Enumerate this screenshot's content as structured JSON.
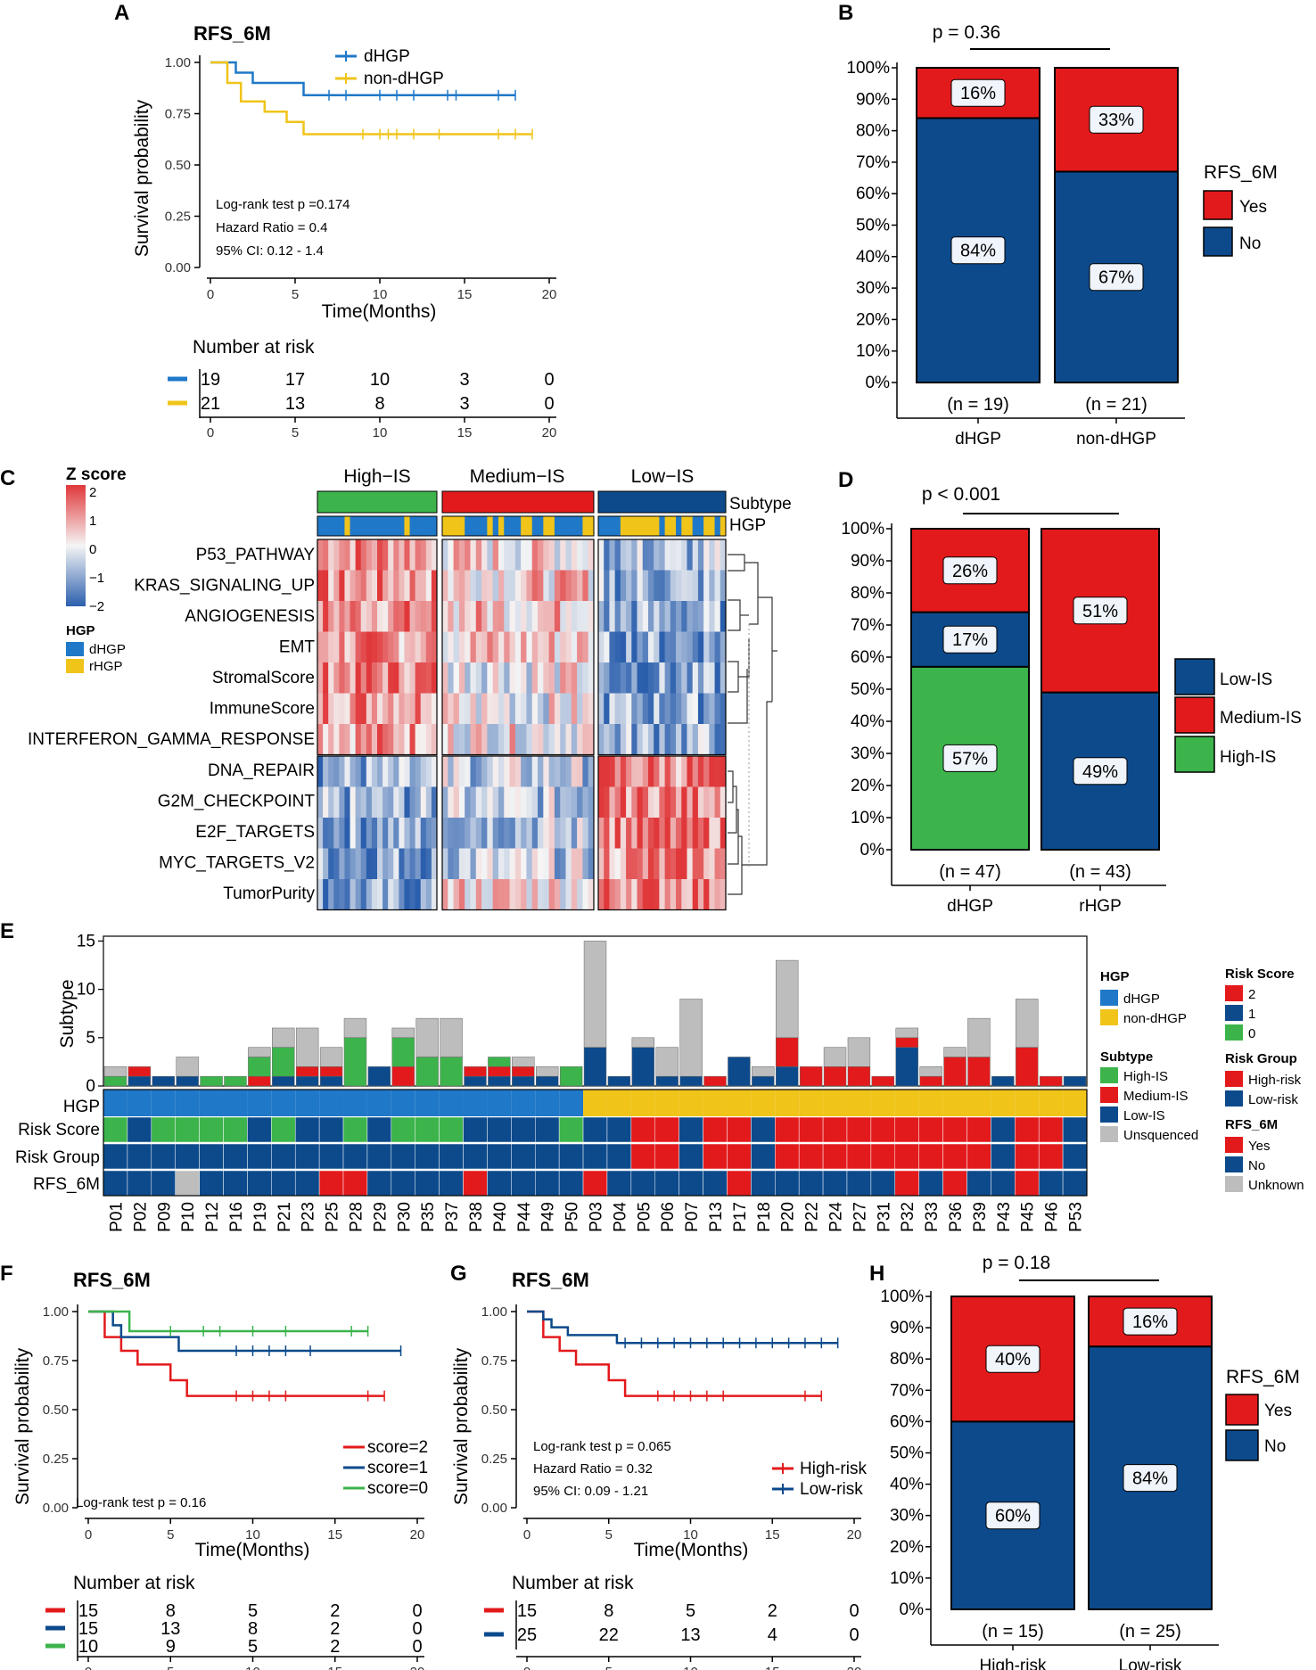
{
  "panels": {
    "a": "A",
    "b": "B",
    "c": "C",
    "d": "D",
    "e": "E",
    "f": "F",
    "g": "G",
    "h": "H"
  },
  "colors": {
    "blue": "#1f78c8",
    "yellow": "#f0c419",
    "red": "#e31a1c",
    "navy": "#0c4a8c",
    "green": "#3cb44b",
    "grey": "#bdbdbd"
  },
  "km_a": {
    "title": "RFS_6M",
    "ylabel": "Survival probability",
    "xlabel": "Time(Months)",
    "yticks": [
      "1.00",
      "0.75",
      "0.50",
      "0.25",
      "0.00"
    ],
    "xticks": [
      "0",
      "5",
      "10",
      "15",
      "20"
    ],
    "legend": [
      "dHGP",
      "non-dHGP"
    ],
    "stats": [
      "Log-rank test p =0.174",
      "Hazard Ratio = 0.4",
      "95% CI: 0.12 - 1.4"
    ],
    "risk_title": "Number at risk",
    "risk_rows": [
      [
        "19",
        "17",
        "10",
        "3",
        "0"
      ],
      [
        "21",
        "13",
        "8",
        "3",
        "0"
      ]
    ]
  },
  "bar_b": {
    "p": "p = 0.36",
    "yticks": [
      "100%",
      "90%",
      "80%",
      "70%",
      "60%",
      "50%",
      "40%",
      "30%",
      "20%",
      "10%",
      "0%"
    ],
    "categories": [
      "dHGP",
      "non-dHGP"
    ],
    "n_labels": [
      "(n = 19)",
      "(n = 21)"
    ],
    "yes_labels": [
      "16%",
      "33%"
    ],
    "no_labels": [
      "84%",
      "67%"
    ],
    "legend_title": "RFS_6M",
    "legend": [
      "Yes",
      "No"
    ]
  },
  "heat_c": {
    "zscore_title": "Z score",
    "zticks": [
      "2",
      "1",
      "0",
      "−1",
      "−2"
    ],
    "hgp_title": "HGP",
    "hgp_legend": [
      "dHGP",
      "rHGP"
    ],
    "groups": [
      "High−IS",
      "Medium−IS",
      "Low−IS"
    ],
    "annot_labels": [
      "Subtype",
      "HGP"
    ],
    "rows_top": [
      "P53_PATHWAY",
      "KRAS_SIGNALING_UP",
      "ANGIOGENESIS",
      "EMT",
      "StromalScore",
      "ImmuneScore",
      "INTERFERON_GAMMA_RESPONSE"
    ],
    "rows_bottom": [
      "DNA_REPAIR",
      "G2M_CHECKPOINT",
      "E2F_TARGETS",
      "MYC_TARGETS_V2",
      "TumorPurity"
    ]
  },
  "bar_d": {
    "p": "p < 0.001",
    "yticks": [
      "100%",
      "90%",
      "80%",
      "70%",
      "60%",
      "50%",
      "40%",
      "30%",
      "20%",
      "10%",
      "0%"
    ],
    "categories": [
      "dHGP",
      "rHGP"
    ],
    "n_labels": [
      "(n = 47)",
      "(n = 43)"
    ],
    "labels_dhgp": [
      "26%",
      "17%",
      "57%"
    ],
    "labels_rhgp": [
      "51%",
      "49%"
    ],
    "legend": [
      "Low-IS",
      "Medium-IS",
      "High-IS"
    ]
  },
  "onco_e": {
    "ylabel": "Subtype",
    "yticks": [
      "15",
      "10",
      "5",
      "0"
    ],
    "track_labels": [
      "HGP",
      "Risk  Score",
      "Risk Group",
      "RFS_6M"
    ],
    "patients": [
      "P01",
      "P02",
      "P09",
      "P10",
      "P12",
      "P16",
      "P19",
      "P21",
      "P23",
      "P25",
      "P28",
      "P29",
      "P30",
      "P35",
      "P37",
      "P38",
      "P40",
      "P44",
      "P49",
      "P50",
      "P03",
      "P04",
      "P05",
      "P06",
      "P07",
      "P13",
      "P17",
      "P18",
      "P20",
      "P22",
      "P24",
      "P27",
      "P31",
      "P32",
      "P33",
      "P36",
      "P39",
      "P43",
      "P45",
      "P46",
      "P53"
    ],
    "legend_hgp_title": "HGP",
    "legend_hgp": [
      "dHGP",
      "non-dHGP"
    ],
    "legend_subtype_title": "Subtype",
    "legend_subtype": [
      "High-IS",
      "Medium-IS",
      "Low-IS",
      "Unsquenced"
    ],
    "legend_score_title": "Risk Score",
    "legend_score": [
      "2",
      "1",
      "0"
    ],
    "legend_group_title": "Risk Group",
    "legend_group": [
      "High-risk",
      "Low-risk"
    ],
    "legend_rfs_title": "RFS_6M",
    "legend_rfs": [
      "Yes",
      "No",
      "Unknown"
    ]
  },
  "km_f": {
    "title": "RFS_6M",
    "ylabel": "Survival probability",
    "xlabel": "Time(Months)",
    "yticks": [
      "1.00",
      "0.75",
      "0.50",
      "0.25",
      "0.00"
    ],
    "xticks": [
      "0",
      "5",
      "10",
      "15",
      "20"
    ],
    "legend": [
      "score=2",
      "score=1",
      "score=0"
    ],
    "stats": "Log-rank test p = 0.16",
    "risk_title": "Number at risk",
    "risk_rows": [
      [
        "15",
        "8",
        "5",
        "2",
        "0"
      ],
      [
        "15",
        "13",
        "8",
        "2",
        "0"
      ],
      [
        "10",
        "9",
        "5",
        "2",
        "0"
      ]
    ]
  },
  "km_g": {
    "title": "RFS_6M",
    "ylabel": "Survival probability",
    "xlabel": "Time(Months)",
    "yticks": [
      "1.00",
      "0.75",
      "0.50",
      "0.25",
      "0.00"
    ],
    "xticks": [
      "0",
      "5",
      "10",
      "15",
      "20"
    ],
    "legend": [
      "High-risk",
      "Low-risk"
    ],
    "stats": [
      "Log-rank test p = 0.065",
      "Hazard Ratio = 0.32",
      "95% CI: 0.09 - 1.21"
    ],
    "risk_title": "Number at risk",
    "risk_rows": [
      [
        "15",
        "8",
        "5",
        "2",
        "0"
      ],
      [
        "25",
        "22",
        "13",
        "4",
        "0"
      ]
    ]
  },
  "bar_h": {
    "p": "p = 0.18",
    "yticks": [
      "100%",
      "90%",
      "80%",
      "70%",
      "60%",
      "50%",
      "40%",
      "30%",
      "20%",
      "10%",
      "0%"
    ],
    "categories": [
      "High-risk",
      "Low-risk"
    ],
    "n_labels": [
      "(n = 15)",
      "(n = 25)"
    ],
    "yes_labels": [
      "40%",
      "16%"
    ],
    "no_labels": [
      "60%",
      "84%"
    ],
    "legend_title": "RFS_6M",
    "legend": [
      "Yes",
      "No"
    ]
  },
  "chart_data": [
    {
      "type": "line",
      "title": "RFS_6M (A)",
      "xlabel": "Time(Months)",
      "ylabel": "Survival probability",
      "xlim": [
        0,
        20
      ],
      "ylim": [
        0,
        1
      ],
      "series": [
        {
          "name": "dHGP",
          "x": [
            0,
            1.5,
            2.5,
            5.5,
            18
          ],
          "y": [
            1.0,
            0.95,
            0.9,
            0.84,
            0.84
          ]
        },
        {
          "name": "non-dHGP",
          "x": [
            0,
            1,
            1.8,
            3.2,
            4.5,
            5.5,
            19
          ],
          "y": [
            1.0,
            0.9,
            0.81,
            0.76,
            0.71,
            0.65,
            0.65
          ]
        }
      ]
    },
    {
      "type": "bar",
      "title": "p = 0.36",
      "categories": [
        "dHGP",
        "non-dHGP"
      ],
      "series": [
        {
          "name": "No",
          "values": [
            84,
            67
          ]
        },
        {
          "name": "Yes",
          "values": [
            16,
            33
          ]
        }
      ]
    },
    {
      "type": "heatmap",
      "title": "Z score",
      "columns": [
        "High−IS",
        "Medium−IS",
        "Low−IS"
      ],
      "rows": [
        "P53_PATHWAY",
        "KRAS_SIGNALING_UP",
        "ANGIOGENESIS",
        "EMT",
        "StromalScore",
        "ImmuneScore",
        "INTERFERON_GAMMA_RESPONSE",
        "DNA_REPAIR",
        "G2M_CHECKPOINT",
        "E2F_TARGETS",
        "MYC_TARGETS_V2",
        "TumorPurity"
      ],
      "values": [
        [
          1.2,
          0.3,
          -0.8
        ],
        [
          1.0,
          0.5,
          -0.9
        ],
        [
          1.1,
          0.6,
          -1.0
        ],
        [
          1.0,
          0.5,
          -1.1
        ],
        [
          1.3,
          0.1,
          -1.2
        ],
        [
          1.2,
          0.0,
          -1.0
        ],
        [
          1.0,
          0.2,
          -0.9
        ],
        [
          -1.0,
          -0.5,
          1.2
        ],
        [
          -1.0,
          -0.6,
          1.3
        ],
        [
          -1.0,
          -0.6,
          1.3
        ],
        [
          -1.0,
          -0.5,
          1.1
        ],
        [
          -1.2,
          0.4,
          1.3
        ]
      ]
    },
    {
      "type": "bar",
      "title": "p < 0.001",
      "categories": [
        "dHGP",
        "rHGP"
      ],
      "series": [
        {
          "name": "High-IS",
          "values": [
            57,
            0
          ]
        },
        {
          "name": "Low-IS",
          "values": [
            17,
            49
          ]
        },
        {
          "name": "Medium-IS",
          "values": [
            26,
            51
          ]
        }
      ]
    },
    {
      "type": "bar",
      "title": "Subtype",
      "categories": [
        "P01",
        "P02",
        "P09",
        "P10",
        "P12",
        "P16",
        "P19",
        "P21",
        "P23",
        "P25",
        "P28",
        "P29",
        "P30",
        "P35",
        "P37",
        "P38",
        "P40",
        "P44",
        "P49",
        "P50",
        "P03",
        "P04",
        "P05",
        "P06",
        "P07",
        "P13",
        "P17",
        "P18",
        "P20",
        "P22",
        "P24",
        "P27",
        "P31",
        "P32",
        "P33",
        "P36",
        "P39",
        "P43",
        "P45",
        "P46",
        "P53"
      ],
      "ylim": [
        0,
        15
      ],
      "series": [
        {
          "name": "High-IS",
          "values": [
            1,
            0,
            0,
            0,
            1,
            1,
            2,
            3,
            0,
            0,
            5,
            0,
            3,
            3,
            3,
            0,
            1,
            0,
            0,
            2,
            0,
            0,
            0,
            0,
            0,
            0,
            0,
            0,
            0,
            0,
            0,
            0,
            0,
            0,
            0,
            0,
            0,
            0,
            0,
            0,
            0
          ]
        },
        {
          "name": "Medium-IS",
          "values": [
            0,
            1,
            0,
            0,
            0,
            0,
            1,
            0,
            1,
            1,
            0,
            0,
            2,
            0,
            0,
            1,
            1,
            1,
            0,
            0,
            0,
            0,
            0,
            0,
            0,
            1,
            0,
            0,
            3,
            2,
            2,
            2,
            1,
            1,
            1,
            3,
            3,
            0,
            4,
            1,
            0
          ]
        },
        {
          "name": "Low-IS",
          "values": [
            0,
            1,
            1,
            1,
            0,
            0,
            0,
            1,
            1,
            1,
            0,
            2,
            0,
            0,
            0,
            1,
            1,
            1,
            1,
            0,
            4,
            1,
            4,
            1,
            1,
            0,
            3,
            1,
            2,
            0,
            0,
            0,
            0,
            4,
            0,
            0,
            0,
            1,
            0,
            0,
            1
          ]
        },
        {
          "name": "Unsquenced",
          "values": [
            1,
            0,
            0,
            2,
            0,
            0,
            1,
            2,
            4,
            2,
            2,
            0,
            1,
            4,
            4,
            0,
            0,
            1,
            1,
            0,
            11,
            0,
            1,
            3,
            8,
            0,
            0,
            1,
            8,
            0,
            2,
            3,
            0,
            1,
            1,
            1,
            4,
            0,
            5,
            0,
            0
          ]
        },
        {
          "name": "HGP",
          "values": [
            "dHGP",
            "dHGP",
            "dHGP",
            "dHGP",
            "dHGP",
            "dHGP",
            "dHGP",
            "dHGP",
            "dHGP",
            "dHGP",
            "dHGP",
            "dHGP",
            "dHGP",
            "dHGP",
            "dHGP",
            "dHGP",
            "dHGP",
            "dHGP",
            "dHGP",
            "dHGP",
            "non-dHGP",
            "non-dHGP",
            "non-dHGP",
            "non-dHGP",
            "non-dHGP",
            "non-dHGP",
            "non-dHGP",
            "non-dHGP",
            "non-dHGP",
            "non-dHGP",
            "non-dHGP",
            "non-dHGP",
            "non-dHGP",
            "non-dHGP",
            "non-dHGP",
            "non-dHGP",
            "non-dHGP",
            "non-dHGP",
            "non-dHGP",
            "non-dHGP",
            "non-dHGP"
          ]
        },
        {
          "name": "Risk Score",
          "values": [
            0,
            1,
            0,
            0,
            0,
            0,
            1,
            0,
            1,
            1,
            0,
            1,
            0,
            0,
            0,
            1,
            1,
            1,
            1,
            0,
            1,
            1,
            2,
            2,
            1,
            2,
            2,
            1,
            2,
            2,
            2,
            2,
            2,
            2,
            2,
            2,
            2,
            1,
            2,
            2,
            1
          ]
        },
        {
          "name": "Risk Group",
          "values": [
            "Low-risk",
            "Low-risk",
            "Low-risk",
            "Low-risk",
            "Low-risk",
            "Low-risk",
            "Low-risk",
            "Low-risk",
            "Low-risk",
            "Low-risk",
            "Low-risk",
            "Low-risk",
            "Low-risk",
            "Low-risk",
            "Low-risk",
            "Low-risk",
            "Low-risk",
            "Low-risk",
            "Low-risk",
            "Low-risk",
            "Low-risk",
            "Low-risk",
            "High-risk",
            "High-risk",
            "Low-risk",
            "High-risk",
            "High-risk",
            "Low-risk",
            "High-risk",
            "High-risk",
            "High-risk",
            "High-risk",
            "High-risk",
            "High-risk",
            "High-risk",
            "High-risk",
            "High-risk",
            "Low-risk",
            "High-risk",
            "High-risk",
            "Low-risk"
          ]
        },
        {
          "name": "RFS_6M",
          "values": [
            "No",
            "No",
            "No",
            "Unknown",
            "No",
            "No",
            "No",
            "No",
            "No",
            "Yes",
            "Yes",
            "No",
            "No",
            "No",
            "No",
            "Yes",
            "No",
            "No",
            "No",
            "No",
            "Yes",
            "No",
            "No",
            "No",
            "No",
            "No",
            "Yes",
            "No",
            "No",
            "No",
            "No",
            "No",
            "No",
            "Yes",
            "No",
            "Yes",
            "No",
            "No",
            "Yes",
            "No",
            "No"
          ]
        }
      ]
    },
    {
      "type": "line",
      "title": "RFS_6M (F)",
      "xlabel": "Time(Months)",
      "ylabel": "Survival probability",
      "xlim": [
        0,
        20
      ],
      "ylim": [
        0,
        1
      ],
      "series": [
        {
          "name": "score=2",
          "x": [
            0,
            1,
            2,
            3,
            5,
            6,
            18
          ],
          "y": [
            1.0,
            0.87,
            0.8,
            0.73,
            0.65,
            0.57,
            0.57
          ]
        },
        {
          "name": "score=1",
          "x": [
            0,
            1.5,
            2,
            5.5,
            19
          ],
          "y": [
            1.0,
            0.93,
            0.87,
            0.8,
            0.8
          ]
        },
        {
          "name": "score=0",
          "x": [
            0,
            2.5,
            17
          ],
          "y": [
            1.0,
            0.9,
            0.9
          ]
        }
      ]
    },
    {
      "type": "line",
      "title": "RFS_6M (G)",
      "xlabel": "Time(Months)",
      "ylabel": "Survival probability",
      "xlim": [
        0,
        20
      ],
      "ylim": [
        0,
        1
      ],
      "series": [
        {
          "name": "High-risk",
          "x": [
            0,
            1,
            2,
            3,
            5,
            6,
            18
          ],
          "y": [
            1.0,
            0.87,
            0.8,
            0.73,
            0.65,
            0.57,
            0.57
          ]
        },
        {
          "name": "Low-risk",
          "x": [
            0,
            1,
            1.5,
            2.5,
            5.5,
            19
          ],
          "y": [
            1.0,
            0.96,
            0.92,
            0.88,
            0.84,
            0.84
          ]
        }
      ]
    },
    {
      "type": "bar",
      "title": "p = 0.18",
      "categories": [
        "High-risk",
        "Low-risk"
      ],
      "series": [
        {
          "name": "No",
          "values": [
            60,
            84
          ]
        },
        {
          "name": "Yes",
          "values": [
            40,
            16
          ]
        }
      ]
    }
  ]
}
